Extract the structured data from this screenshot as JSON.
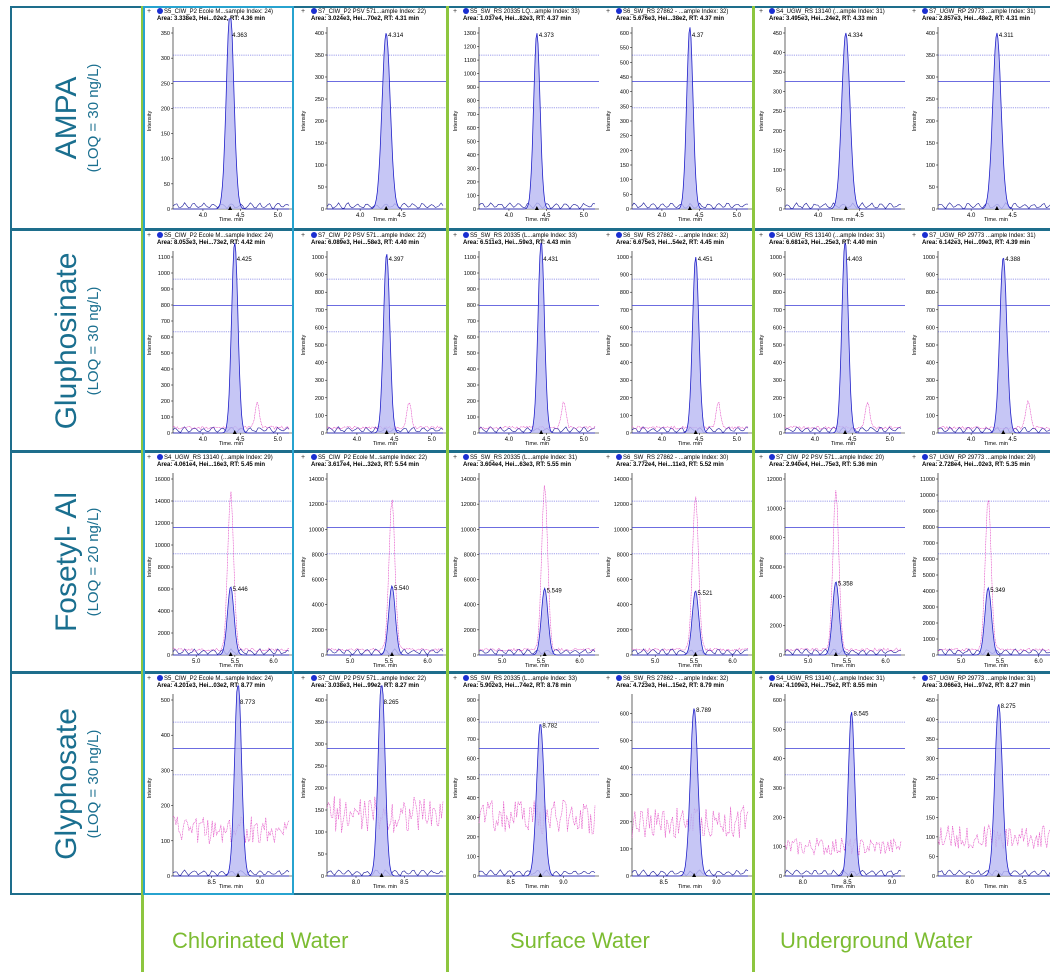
{
  "columns": [
    "Chlorinated Water",
    "Surface Water",
    "Underground Water"
  ],
  "rows": [
    {
      "name": "AMPA",
      "loq": "(LOQ = 30 ng/L)"
    },
    {
      "name": "Gluphosinate",
      "loq": "(LOQ = 30 ng/L)"
    },
    {
      "name": "Fosetyl- Al",
      "loq": "(LOQ = 20 ng/L)"
    },
    {
      "name": "Glyphosate",
      "loq": "(LOQ = 30 ng/L)"
    }
  ],
  "axis_label_y": "Intensity",
  "axis_label_x": "Time, min",
  "chart_data": [
    {
      "type": "line",
      "row": 0,
      "col": 0,
      "title": "S5_CIW_P2 Ecole M...sample Index: 24)",
      "area": "Area: 3.338e3, Hei...02e2, RT: 4.36 min",
      "peak_rt": 4.363,
      "peak_label": "4.363",
      "peak": 400,
      "ylim": [
        0,
        350
      ],
      "yticks": [
        0,
        50,
        100,
        150,
        200,
        250,
        300,
        350
      ],
      "xticks": [
        4.0,
        4.5,
        5.0
      ],
      "xlim": [
        3.6,
        5.15
      ],
      "width": 0.07,
      "pink": false
    },
    {
      "type": "line",
      "row": 0,
      "col": 1,
      "title": "S7_CIW_P2 PSV 571...ample Index: 22)",
      "area": "Area: 3.024e3, Hei...70e2, RT: 4.31 min",
      "peak_rt": 4.314,
      "peak_label": "4.314",
      "peak": 400,
      "ylim": [
        0,
        400
      ],
      "yticks": [
        0,
        50,
        100,
        150,
        200,
        250,
        300,
        350,
        400
      ],
      "xticks": [
        4.0,
        4.5
      ],
      "xlim": [
        3.6,
        5.0
      ],
      "width": 0.07,
      "pink": false
    },
    {
      "type": "line",
      "row": 0,
      "col": 2,
      "title": "S5_SW_RS 20335 LQ...ample Index: 33)",
      "area": "Area: 1.037e4, Hei...82e3, RT: 4.37 min",
      "peak_rt": 4.373,
      "peak_label": "4.373",
      "peak": 1300,
      "ylim": [
        0,
        1300
      ],
      "yticks": [
        0,
        100,
        200,
        300,
        400,
        500,
        600,
        700,
        800,
        900,
        1000,
        1100,
        1200,
        1300
      ],
      "xticks": [
        4.0,
        4.5,
        5.0
      ],
      "xlim": [
        3.6,
        5.15
      ],
      "width": 0.06,
      "pink": false
    },
    {
      "type": "line",
      "row": 0,
      "col": 3,
      "title": "S6_SW_RS 27862 - ...ample Index: 32)",
      "area": "Area: 5.676e3, Hei...38e2, RT: 4.37 min",
      "peak_rt": 4.373,
      "peak_label": "4.37",
      "peak": 620,
      "ylim": [
        0,
        600
      ],
      "yticks": [
        0,
        50,
        100,
        150,
        200,
        250,
        300,
        350,
        400,
        450,
        500,
        550,
        600
      ],
      "xticks": [
        4.0,
        4.5,
        5.0
      ],
      "xlim": [
        3.6,
        5.15
      ],
      "width": 0.06,
      "pink": false
    },
    {
      "type": "line",
      "row": 0,
      "col": 4,
      "title": "S4_UGW_RS 13140 (...ample Index: 31)",
      "area": "Area: 3.495e3, Hei...24e2, RT: 4.33 min",
      "peak_rt": 4.334,
      "peak_label": "4.334",
      "peak": 450,
      "ylim": [
        0,
        450
      ],
      "yticks": [
        0,
        50,
        100,
        150,
        200,
        250,
        300,
        350,
        400,
        450
      ],
      "xticks": [
        4.0,
        4.5
      ],
      "xlim": [
        3.6,
        5.0
      ],
      "width": 0.07,
      "pink": false
    },
    {
      "type": "line",
      "row": 0,
      "col": 5,
      "title": "S7_UGW_RP 29773 ...ample Index: 31)",
      "area": "Area: 2.857e3, Hei...48e2, RT: 4.31 min",
      "peak_rt": 4.311,
      "peak_label": "4.311",
      "peak": 400,
      "ylim": [
        0,
        400
      ],
      "yticks": [
        0,
        50,
        100,
        150,
        200,
        250,
        300,
        350,
        400
      ],
      "xticks": [
        4.0,
        4.5
      ],
      "xlim": [
        3.6,
        5.0
      ],
      "width": 0.07,
      "pink": false
    },
    {
      "type": "line",
      "row": 1,
      "col": 0,
      "title": "S5_CIW_P2 Ecole M...sample Index: 24)",
      "area": "Area: 8.053e3, Hei...73e2, RT: 4.42 min",
      "peak_rt": 4.425,
      "peak_label": "4.425",
      "peak": 1200,
      "ylim": [
        0,
        1100
      ],
      "yticks": [
        0,
        100,
        200,
        300,
        400,
        500,
        600,
        700,
        800,
        900,
        1000,
        1100
      ],
      "xticks": [
        4.0,
        4.5,
        5.0
      ],
      "xlim": [
        3.6,
        5.15
      ],
      "width": 0.06,
      "pink": true
    },
    {
      "type": "line",
      "row": 1,
      "col": 1,
      "title": "S7_CIW_P2 PSV 571...ample Index: 22)",
      "area": "Area: 6.089e3, Hei...58e3, RT: 4.40 min",
      "peak_rt": 4.397,
      "peak_label": "4.397",
      "peak": 1020,
      "ylim": [
        0,
        1000
      ],
      "yticks": [
        0,
        100,
        200,
        300,
        400,
        500,
        600,
        700,
        800,
        900,
        1000
      ],
      "xticks": [
        4.0,
        4.5,
        5.0
      ],
      "xlim": [
        3.6,
        5.15
      ],
      "width": 0.06,
      "pink": true
    },
    {
      "type": "line",
      "row": 1,
      "col": 2,
      "title": "S5_SW_RS 20335 (L...ample Index: 33)",
      "area": "Area: 6.511e3, Hei...59e3, RT: 4.43 min",
      "peak_rt": 4.431,
      "peak_label": "4.431",
      "peak": 1200,
      "ylim": [
        0,
        1100
      ],
      "yticks": [
        0,
        100,
        200,
        300,
        400,
        500,
        600,
        700,
        800,
        900,
        1000,
        1100
      ],
      "xticks": [
        4.0,
        4.5,
        5.0
      ],
      "xlim": [
        3.6,
        5.15
      ],
      "width": 0.06,
      "pink": true
    },
    {
      "type": "line",
      "row": 1,
      "col": 3,
      "title": "S6_SW_RS 27862 - ...ample Index: 32)",
      "area": "Area: 6.675e3, Hei...54e2, RT: 4.45 min",
      "peak_rt": 4.451,
      "peak_label": "4.451",
      "peak": 1000,
      "ylim": [
        0,
        1000
      ],
      "yticks": [
        0,
        100,
        200,
        300,
        400,
        500,
        600,
        700,
        800,
        900,
        1000
      ],
      "xticks": [
        4.0,
        4.5,
        5.0
      ],
      "xlim": [
        3.6,
        5.15
      ],
      "width": 0.06,
      "pink": true
    },
    {
      "type": "line",
      "row": 1,
      "col": 4,
      "title": "S4_UGW_RS 13140 (...ample Index: 31)",
      "area": "Area: 6.681e3, Hei...25e3, RT: 4.40 min",
      "peak_rt": 4.403,
      "peak_label": "4.403",
      "peak": 1100,
      "ylim": [
        0,
        1000
      ],
      "yticks": [
        0,
        100,
        200,
        300,
        400,
        500,
        600,
        700,
        800,
        900,
        1000
      ],
      "xticks": [
        4.0,
        4.5,
        5.0
      ],
      "xlim": [
        3.6,
        5.15
      ],
      "width": 0.06,
      "pink": true
    },
    {
      "type": "line",
      "row": 1,
      "col": 5,
      "title": "S7_UGW_RP 29773 ...ample Index: 31)",
      "area": "Area: 6.142e3, Hei...09e3, RT: 4.39 min",
      "peak_rt": 4.388,
      "peak_label": "4.388",
      "peak": 1000,
      "ylim": [
        0,
        1000
      ],
      "yticks": [
        0,
        100,
        200,
        300,
        400,
        500,
        600,
        700,
        800,
        900,
        1000
      ],
      "xticks": [
        4.0,
        4.5
      ],
      "xlim": [
        3.6,
        5.0
      ],
      "width": 0.06,
      "pink": true
    },
    {
      "type": "line",
      "row": 2,
      "col": 0,
      "title": "S4_UGW_RS 13140 (...ample Index: 29)",
      "area": "Area: 4.061e4, Hei...16e3, RT: 5.45 min",
      "peak_rt": 5.446,
      "peak_label": "5.446",
      "peak": 6200,
      "ylim": [
        0,
        16000
      ],
      "yticks": [
        0,
        2000,
        4000,
        6000,
        8000,
        10000,
        12000,
        14000,
        16000
      ],
      "xticks": [
        5.0,
        5.5,
        6.0
      ],
      "xlim": [
        4.7,
        6.2
      ],
      "width": 0.06,
      "pink": true,
      "pinkpeak": 14400
    },
    {
      "type": "line",
      "row": 2,
      "col": 1,
      "title": "S5_CIW_P2 Ecole M...sample Index: 22)",
      "area": "Area: 3.617e4, Hei...32e3, RT: 5.54 min",
      "peak_rt": 5.54,
      "peak_label": "5.540",
      "peak": 5500,
      "ylim": [
        0,
        14000
      ],
      "yticks": [
        0,
        2000,
        4000,
        6000,
        8000,
        10000,
        12000,
        14000
      ],
      "xticks": [
        5.0,
        5.5,
        6.0
      ],
      "xlim": [
        4.7,
        6.2
      ],
      "width": 0.06,
      "pink": true,
      "pinkpeak": 12000
    },
    {
      "type": "line",
      "row": 2,
      "col": 2,
      "title": "S5_SW_RS 20335 (L...ample Index: 31)",
      "area": "Area: 3.604e4, Hei...63e3, RT: 5.55 min",
      "peak_rt": 5.549,
      "peak_label": "5.549",
      "peak": 5300,
      "ylim": [
        0,
        14000
      ],
      "yticks": [
        0,
        2000,
        4000,
        6000,
        8000,
        10000,
        12000,
        14000
      ],
      "xticks": [
        5.0,
        5.5,
        6.0
      ],
      "xlim": [
        4.7,
        6.2
      ],
      "width": 0.06,
      "pink": true,
      "pinkpeak": 13200
    },
    {
      "type": "line",
      "row": 2,
      "col": 3,
      "title": "S6_SW_RS 27862 - ...ample Index: 30)",
      "area": "Area: 3.772e4, Hei...11e3, RT: 5.52 min",
      "peak_rt": 5.521,
      "peak_label": "5.521",
      "peak": 5100,
      "ylim": [
        0,
        14000
      ],
      "yticks": [
        0,
        2000,
        4000,
        6000,
        8000,
        10000,
        12000,
        14000
      ],
      "xticks": [
        5.0,
        5.5,
        6.0
      ],
      "xlim": [
        4.7,
        6.2
      ],
      "width": 0.06,
      "pink": true,
      "pinkpeak": 12300
    },
    {
      "type": "line",
      "row": 2,
      "col": 4,
      "title": "S7_CIW_P2 PSV 571...ample Index: 20)",
      "area": "Area: 2.940e4, Hei...75e3, RT: 5.36 min",
      "peak_rt": 5.358,
      "peak_label": "5.358",
      "peak": 5000,
      "ylim": [
        0,
        12000
      ],
      "yticks": [
        0,
        2000,
        4000,
        6000,
        8000,
        10000,
        12000
      ],
      "xticks": [
        5.0,
        5.5,
        6.0
      ],
      "xlim": [
        4.7,
        6.2
      ],
      "width": 0.06,
      "pink": true,
      "pinkpeak": 10900
    },
    {
      "type": "line",
      "row": 2,
      "col": 5,
      "title": "S7_UGW_RP 29773 ...ample Index: 29)",
      "area": "Area: 2.728e4, Hei...02e3, RT: 5.35 min",
      "peak_rt": 5.349,
      "peak_label": "5.349",
      "peak": 4200,
      "ylim": [
        0,
        11000
      ],
      "yticks": [
        0,
        1000,
        2000,
        3000,
        4000,
        5000,
        6000,
        7000,
        8000,
        9000,
        10000,
        11000
      ],
      "xticks": [
        5.0,
        5.5,
        6.0
      ],
      "xlim": [
        4.7,
        6.2
      ],
      "width": 0.06,
      "pink": true,
      "pinkpeak": 9500
    },
    {
      "type": "line",
      "row": 3,
      "col": 0,
      "title": "S5_CIW_P2 Ecole M...sample Index: 24)",
      "area": "Area: 4.201e3, Hei...03e2, RT: 8.77 min",
      "peak_rt": 8.773,
      "peak_label": "8.773",
      "peak": 560,
      "ylim": [
        0,
        500
      ],
      "yticks": [
        0,
        100,
        200,
        300,
        400,
        500
      ],
      "xticks": [
        8.5,
        9.0
      ],
      "xlim": [
        8.1,
        9.3
      ],
      "width": 0.05,
      "pink": true,
      "pinklevel": 130
    },
    {
      "type": "line",
      "row": 3,
      "col": 1,
      "title": "S7_CIW_P2 PSV 571...ample Index: 22)",
      "area": "Area: 3.038e3, Hei...99e2, RT: 8.27 min",
      "peak_rt": 8.265,
      "peak_label": "8.265",
      "peak": 450,
      "ylim": [
        0,
        400
      ],
      "yticks": [
        0,
        50,
        100,
        150,
        200,
        250,
        300,
        350,
        400
      ],
      "xticks": [
        8.0,
        8.5
      ],
      "xlim": [
        7.7,
        8.9
      ],
      "width": 0.05,
      "pink": true,
      "pinklevel": 140
    },
    {
      "type": "line",
      "row": 3,
      "col": 2,
      "title": "S5_SW_RS 20335 (L...ample Index: 33)",
      "area": "Area: 5.902e3, Hei...74e2, RT: 8.78 min",
      "peak_rt": 8.782,
      "peak_label": "8.782",
      "peak": 780,
      "ylim": [
        0,
        900
      ],
      "yticks": [
        0,
        100,
        200,
        300,
        400,
        500,
        600,
        700,
        800,
        900
      ],
      "xticks": [
        8.5,
        9.0
      ],
      "xlim": [
        8.2,
        9.3
      ],
      "width": 0.05,
      "pink": true,
      "pinklevel": 300
    },
    {
      "type": "line",
      "row": 3,
      "col": 3,
      "title": "S6_SW_RS 27862 - ...ample Index: 32)",
      "area": "Area: 4.723e3, Hei...15e2, RT: 8.79 min",
      "peak_rt": 8.789,
      "peak_label": "8.789",
      "peak": 620,
      "ylim": [
        0,
        650
      ],
      "yticks": [
        0,
        100,
        200,
        300,
        400,
        500,
        600
      ],
      "xticks": [
        8.5,
        9.0
      ],
      "xlim": [
        8.2,
        9.3
      ],
      "width": 0.05,
      "pink": true,
      "pinklevel": 200
    },
    {
      "type": "line",
      "row": 3,
      "col": 4,
      "title": "S4_UGW_RS 13140 (...ample Index: 31)",
      "area": "Area: 4.109e3, Hei...75e2, RT: 8.55 min",
      "peak_rt": 8.545,
      "peak_label": "8.545",
      "peak": 560,
      "ylim": [
        0,
        600
      ],
      "yticks": [
        0,
        100,
        200,
        300,
        400,
        500,
        600
      ],
      "xticks": [
        8.0,
        8.5,
        9.0
      ],
      "xlim": [
        7.8,
        9.1
      ],
      "width": 0.05,
      "pink": true,
      "pinklevel": 100
    },
    {
      "type": "line",
      "row": 3,
      "col": 5,
      "title": "S7_UGW_RP 29773 ...ample Index: 31)",
      "area": "Area: 3.066e3, Hei...97e2, RT: 8.27 min",
      "peak_rt": 8.275,
      "peak_label": "8.275",
      "peak": 440,
      "ylim": [
        0,
        450
      ],
      "yticks": [
        0,
        50,
        100,
        150,
        200,
        250,
        300,
        350,
        400,
        450
      ],
      "xticks": [
        8.0,
        8.5
      ],
      "xlim": [
        7.7,
        8.8
      ],
      "width": 0.05,
      "pink": true,
      "pinklevel": 100
    }
  ]
}
